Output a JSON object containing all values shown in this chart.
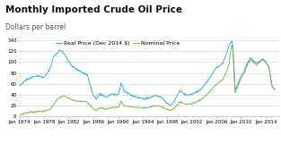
{
  "title": "Monthly Imported Crude Oil Price",
  "subtitle": "Dollars per barrel",
  "legend_nominal": "Nominal Price",
  "legend_real": "Real Price (Dec 2014 $)",
  "nominal_color": "#7ab648",
  "real_color": "#29abe2",
  "bg_color": "#ffffff",
  "grid_color": "#e0e0e0",
  "ylim": [
    0,
    140
  ],
  "yticks": [
    0,
    20,
    40,
    60,
    80,
    100,
    120,
    140
  ],
  "ytick_labels": [
    "0",
    "20",
    "40",
    "60",
    "80",
    "100",
    "120",
    "140"
  ],
  "xtick_years": [
    1974,
    1978,
    1982,
    1986,
    1990,
    1994,
    1998,
    2002,
    2006,
    2010,
    2014
  ],
  "xtick_labels": [
    "Jan 1974",
    "Jan 1978",
    "Jan 1982",
    "Jan 1986",
    "Jan 1990",
    "Jan 1994",
    "Jan 1998",
    "Jan 2002",
    "Jan 2006",
    "Jan 2010",
    "Jan 2014"
  ],
  "title_fontsize": 7.5,
  "subtitle_fontsize": 5.5,
  "tick_fontsize": 4,
  "legend_fontsize": 4.5,
  "xlim": [
    1974,
    2016
  ]
}
